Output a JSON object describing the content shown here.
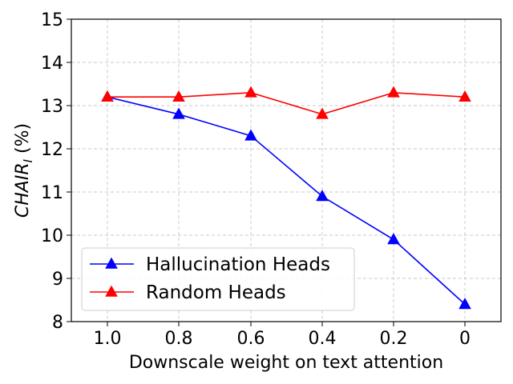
{
  "chart_data": {
    "type": "line",
    "x": [
      1.0,
      0.8,
      0.6,
      0.4,
      0.2,
      0
    ],
    "x_tick_labels": [
      "1.0",
      "0.8",
      "0.6",
      "0.4",
      "0.2",
      "0"
    ],
    "series": [
      {
        "name": "Hallucination Heads",
        "values": [
          13.2,
          12.8,
          12.3,
          10.9,
          9.9,
          8.4
        ],
        "color": "#0000ff",
        "marker": "triangle"
      },
      {
        "name": "Random Heads",
        "values": [
          13.2,
          13.2,
          13.3,
          12.8,
          13.3,
          13.2
        ],
        "color": "#ff0000",
        "marker": "triangle"
      }
    ],
    "xlabel": "Downscale weight on text attention",
    "ylabel_main": "CHAIR",
    "ylabel_sub": "I",
    "ylabel_unit": " (%)",
    "ylim": [
      8,
      15
    ],
    "yticks": [
      8,
      9,
      10,
      11,
      12,
      13,
      14,
      15
    ],
    "grid": true,
    "legend_position": "lower-left"
  }
}
